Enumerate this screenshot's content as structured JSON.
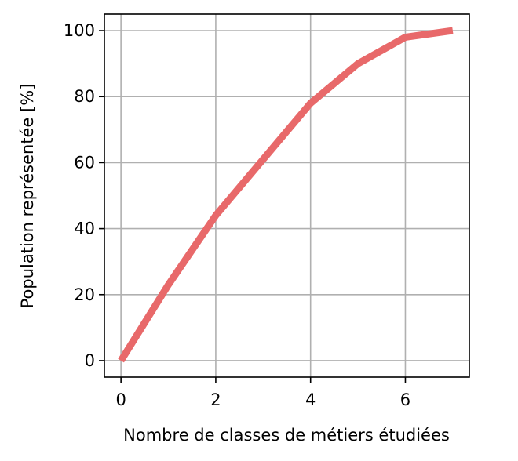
{
  "chart_data": {
    "type": "line",
    "x": [
      0,
      1,
      2,
      3,
      4,
      5,
      6,
      7
    ],
    "series": [
      {
        "values": [
          0,
          23,
          44,
          61,
          78,
          90,
          98,
          100
        ],
        "color": "#e8696a"
      }
    ],
    "xlabel": "Nombre de classes de métiers étudiées",
    "ylabel": "Population représentée [%]",
    "xlim": [
      -0.35,
      7.35
    ],
    "ylim": [
      -5,
      105
    ],
    "xticks": [
      0,
      2,
      4,
      6
    ],
    "yticks": [
      0,
      20,
      40,
      60,
      80,
      100
    ],
    "grid": true
  }
}
